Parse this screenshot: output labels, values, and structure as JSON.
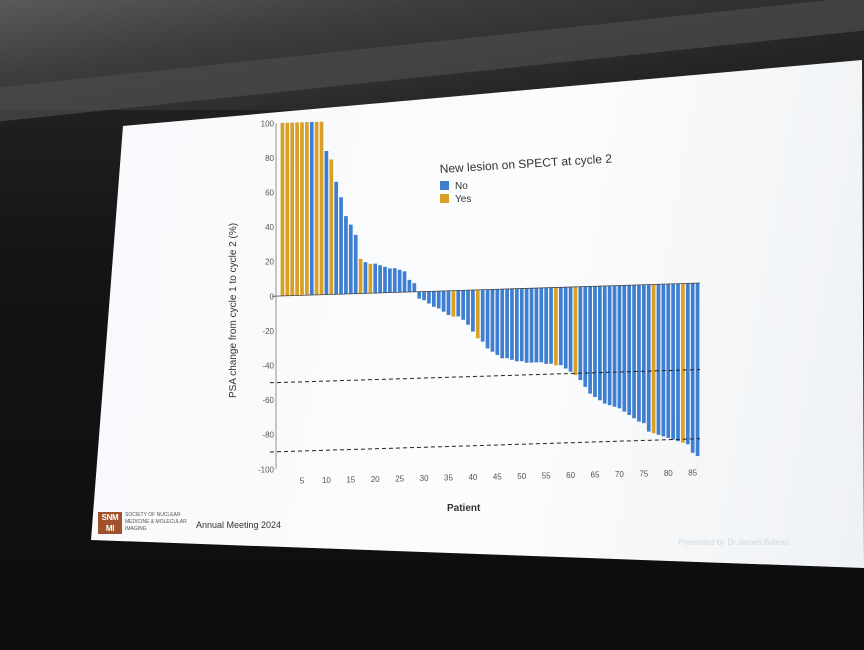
{
  "slide": {
    "legend_title": "New lesion on SPECT at cycle 2",
    "legend": [
      {
        "label": "No",
        "color": "#3f7fd1"
      },
      {
        "label": "Yes",
        "color": "#d9a027"
      }
    ],
    "ylabel": "PSA change from cycle 1 to cycle 2 (%)",
    "xlabel": "Patient",
    "y_ticks": [
      "100",
      "80",
      "60",
      "40",
      "20",
      "0",
      "-20",
      "-40",
      "-60",
      "-80",
      "-100"
    ],
    "x_ticks": [
      "5",
      "10",
      "15",
      "20",
      "25",
      "30",
      "35",
      "40",
      "45",
      "50",
      "55",
      "60",
      "65",
      "70",
      "75",
      "80",
      "85"
    ],
    "footer": {
      "logo_mark": "SNM MI",
      "society": "SOCIETY OF NUCLEAR MEDICINE & MOLECULAR IMAGING",
      "meeting": "Annual Meeting 2024",
      "presenter": "Presented by Dr James Buteau"
    }
  },
  "chart_data": {
    "type": "bar",
    "xlabel": "Patient",
    "ylabel": "PSA change from cycle 1 to cycle 2 (%)",
    "ylim": [
      -100,
      100
    ],
    "reference_lines": [
      -50,
      -90
    ],
    "values": [
      100,
      100,
      100,
      100,
      100,
      100,
      100,
      100,
      100,
      83,
      78,
      65,
      56,
      45,
      40,
      34,
      20,
      18,
      17,
      17,
      16,
      15,
      14,
      14,
      13,
      12,
      7,
      5,
      -4,
      -5,
      -7,
      -9,
      -10,
      -12,
      -14,
      -15,
      -15,
      -17,
      -20,
      -24,
      -28,
      -30,
      -34,
      -36,
      -38,
      -40,
      -40,
      -41,
      -42,
      -42,
      -43,
      -43,
      -43,
      -43,
      -44,
      -44,
      -45,
      -45,
      -47,
      -49,
      -51,
      -54,
      -58,
      -62,
      -64,
      -66,
      -68,
      -69,
      -70,
      -71,
      -73,
      -75,
      -77,
      -79,
      -80,
      -85,
      -86,
      -87,
      -88,
      -89,
      -90,
      -91,
      -92,
      -93,
      -98,
      -100
    ],
    "lesion": [
      "Yes",
      "Yes",
      "Yes",
      "Yes",
      "Yes",
      "Yes",
      "No",
      "Yes",
      "Yes",
      "No",
      "Yes",
      "No",
      "No",
      "No",
      "No",
      "No",
      "Yes",
      "No",
      "Yes",
      "No",
      "No",
      "No",
      "No",
      "No",
      "No",
      "No",
      "No",
      "No",
      "No",
      "No",
      "No",
      "No",
      "No",
      "No",
      "No",
      "Yes",
      "No",
      "No",
      "No",
      "No",
      "Yes",
      "No",
      "No",
      "No",
      "No",
      "No",
      "No",
      "No",
      "No",
      "No",
      "No",
      "No",
      "No",
      "No",
      "No",
      "No",
      "Yes",
      "No",
      "No",
      "No",
      "Yes",
      "No",
      "No",
      "No",
      "No",
      "No",
      "No",
      "No",
      "No",
      "No",
      "No",
      "No",
      "No",
      "No",
      "No",
      "No",
      "Yes",
      "No",
      "No",
      "No",
      "No",
      "No",
      "Yes",
      "No",
      "No",
      "No"
    ]
  }
}
